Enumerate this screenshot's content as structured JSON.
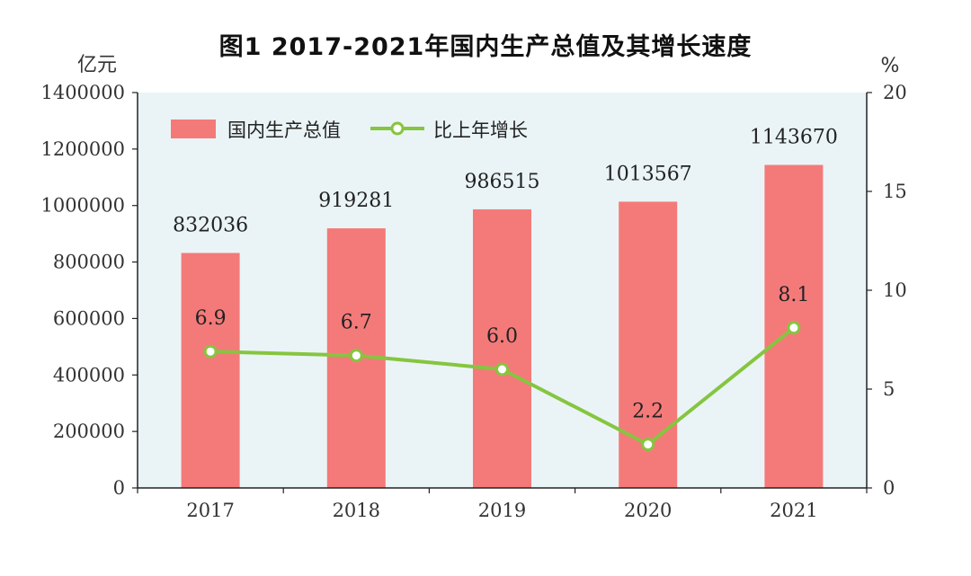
{
  "title": "图1    2017-2021年国内生产总值及其增长速度",
  "chart_data": {
    "type": "bar+line",
    "categories": [
      "2017",
      "2018",
      "2019",
      "2020",
      "2021"
    ],
    "series": [
      {
        "name": "国内生产总值",
        "type": "bar",
        "axis": "left",
        "values": [
          832036,
          919281,
          986515,
          1013567,
          1143670
        ],
        "color": "#f47a7a"
      },
      {
        "name": "比上年增长",
        "type": "line",
        "axis": "right",
        "values": [
          6.9,
          6.7,
          6.0,
          2.2,
          8.1
        ],
        "labels": [
          "6.9",
          "6.7",
          "6.0",
          "2.2",
          "8.1"
        ],
        "color": "#86c53f"
      }
    ],
    "left_axis": {
      "unit": "亿元",
      "ylim": [
        0,
        1400000
      ],
      "ticks": [
        "0",
        "200000",
        "400000",
        "600000",
        "800000",
        "1000000",
        "1200000",
        "1400000"
      ]
    },
    "right_axis": {
      "unit": "%",
      "ylim": [
        0,
        20
      ],
      "ticks": [
        "0",
        "5",
        "10",
        "15",
        "20"
      ]
    },
    "plot_background": "#eaf4f6",
    "legend_placement": "top-left",
    "grid": false
  }
}
